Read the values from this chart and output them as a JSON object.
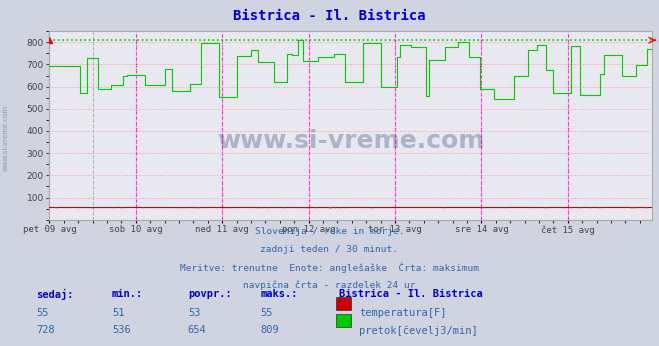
{
  "title": "Bistrica - Il. Bistrica",
  "title_color": "#0000cc",
  "bg_color": "#d0d4e0",
  "plot_bg_color": "#e8e8f0",
  "grid_color_major": "#ff9999",
  "grid_color_minor": "#ffdddd",
  "vline_color": "#ff00ff",
  "vline_gray_color": "#888888",
  "hline_max_color": "#00cc00",
  "x_tick_labels": [
    "pet 09 avg",
    "sob 10 avg",
    "ned 11 avg",
    "pon 12 avg",
    "tor 13 avg",
    "sre 14 avg",
    "čet 15 avg"
  ],
  "x_tick_positions": [
    0,
    48,
    96,
    144,
    192,
    240,
    288
  ],
  "ylim": [
    0,
    850
  ],
  "yticks": [
    100,
    200,
    300,
    400,
    500,
    600,
    700,
    800
  ],
  "max_line_y": 809,
  "temp_color": "#cc0000",
  "flow_color": "#00cc00",
  "n_points": 336,
  "subtitle_lines": [
    "Slovenija / reke in morje.",
    "zadnji teden / 30 minut.",
    "Meritve: trenutne  Enote: anglešaške  Črta: maksimum",
    "navpična črta - razdelek 24 ur"
  ],
  "table_headers": [
    "sedaj:",
    "min.:",
    "povpr.:",
    "maks.:"
  ],
  "table_row1": [
    "55",
    "51",
    "53",
    "55"
  ],
  "table_row2": [
    "728",
    "536",
    "654",
    "809"
  ],
  "legend_title": "Bistrica - Il. Bistrica",
  "legend_items": [
    "temperatura[F]",
    "pretok[čevelj3/min]"
  ],
  "legend_colors": [
    "#cc0000",
    "#00cc00"
  ],
  "watermark_text": "www.si-vreme.com",
  "side_label": "www.si-vreme.com",
  "text_color": "#3366aa",
  "header_color": "#0000cc"
}
